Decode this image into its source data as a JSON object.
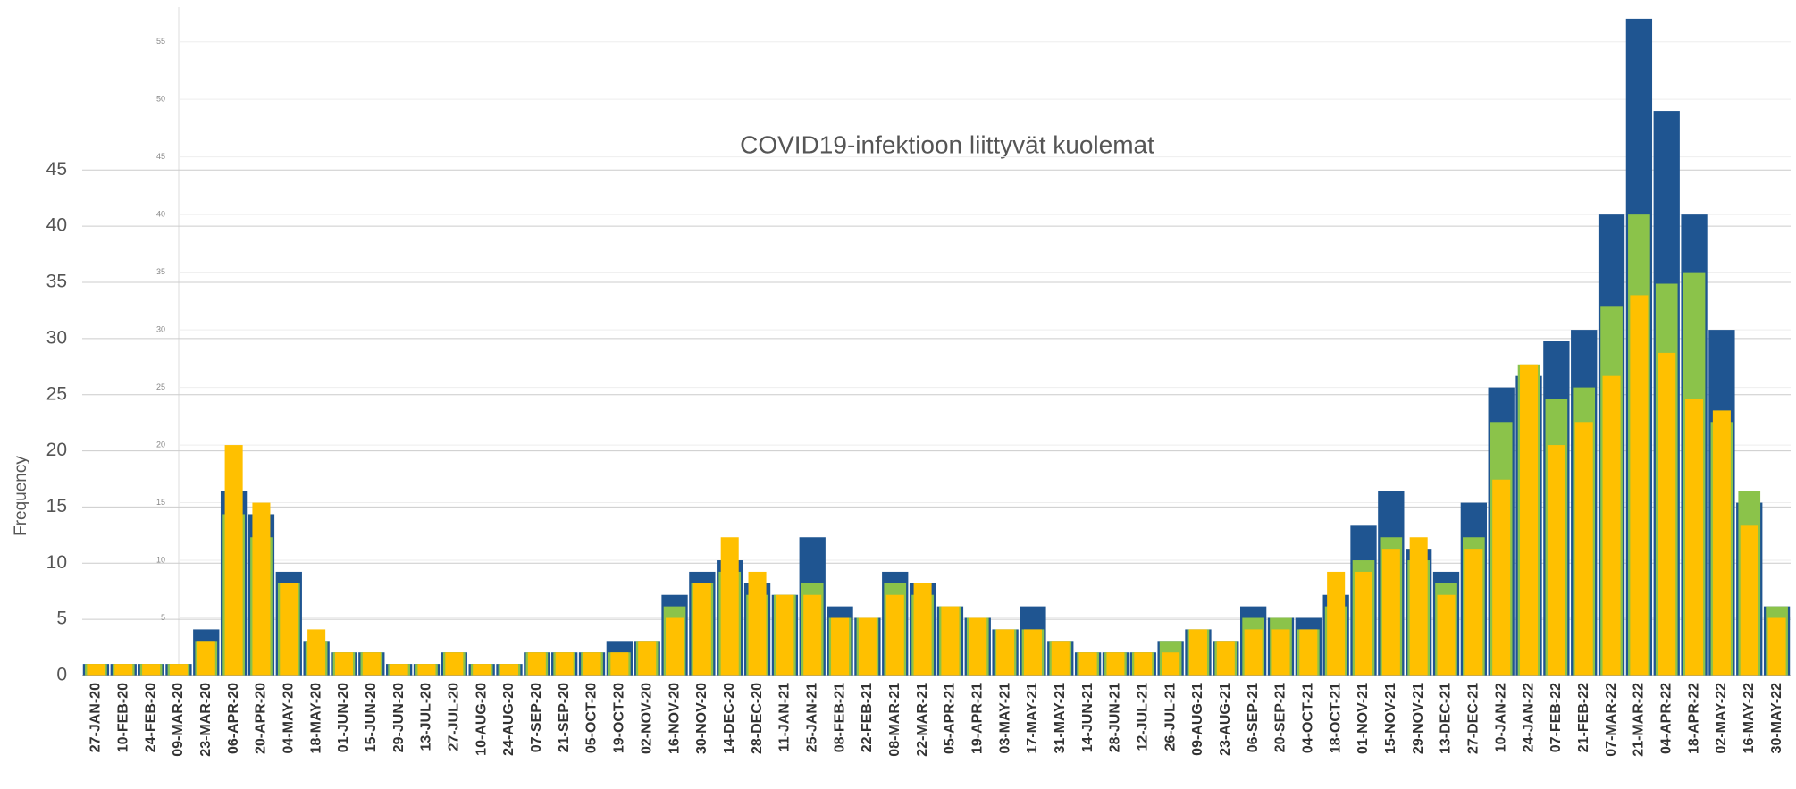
{
  "chart_data": {
    "type": "bar",
    "title": "COVID19-infektioon liittyvät kuolemat",
    "y_label": "Frequency",
    "categories": [
      "27-JAN-20",
      "10-FEB-20",
      "24-FEB-20",
      "09-MAR-20",
      "23-MAR-20",
      "06-APR-20",
      "20-APR-20",
      "04-MAY-20",
      "18-MAY-20",
      "01-JUN-20",
      "15-JUN-20",
      "29-JUN-20",
      "13-JUL-20",
      "27-JUL-20",
      "10-AUG-20",
      "24-AUG-20",
      "07-SEP-20",
      "21-SEP-20",
      "05-OCT-20",
      "19-OCT-20",
      "02-NOV-20",
      "16-NOV-20",
      "30-NOV-20",
      "14-DEC-20",
      "28-DEC-20",
      "11-JAN-21",
      "25-JAN-21",
      "08-FEB-21",
      "22-FEB-21",
      "08-MAR-21",
      "22-MAR-21",
      "05-APR-21",
      "19-APR-21",
      "03-MAY-21",
      "17-MAY-21",
      "31-MAY-21",
      "14-JUN-21",
      "28-JUN-21",
      "12-JUL-21",
      "26-JUL-21",
      "09-AUG-21",
      "23-AUG-21",
      "06-SEP-21",
      "20-SEP-21",
      "04-OCT-21",
      "18-OCT-21",
      "01-NOV-21",
      "15-NOV-21",
      "29-NOV-21",
      "13-DEC-21",
      "27-DEC-21",
      "10-JAN-22",
      "24-JAN-22",
      "07-FEB-22",
      "21-FEB-22",
      "07-MAR-22",
      "21-MAR-22",
      "04-APR-22",
      "18-APR-22",
      "02-MAY-22",
      "16-MAY-22",
      "30-MAY-22"
    ],
    "series": [
      {
        "color": "#1f5591",
        "values": [
          1,
          1,
          1,
          1,
          4,
          16,
          14,
          9,
          3,
          2,
          2,
          1,
          1,
          2,
          1,
          1,
          2,
          2,
          2,
          3,
          3,
          7,
          9,
          10,
          8,
          7,
          12,
          6,
          5,
          9,
          8,
          6,
          5,
          4,
          6,
          3,
          2,
          2,
          2,
          3,
          4,
          3,
          6,
          5,
          5,
          7,
          13,
          16,
          11,
          9,
          15,
          25,
          26,
          29,
          30,
          40,
          57,
          49,
          40,
          30,
          15,
          6
        ]
      },
      {
        "color": "#8bc34a",
        "values": [
          1,
          1,
          1,
          1,
          3,
          14,
          12,
          8,
          3,
          2,
          2,
          1,
          1,
          2,
          1,
          1,
          2,
          2,
          2,
          2,
          3,
          6,
          8,
          9,
          7,
          7,
          8,
          5,
          5,
          8,
          7,
          6,
          5,
          4,
          4,
          3,
          2,
          2,
          2,
          3,
          4,
          3,
          5,
          5,
          4,
          6,
          10,
          12,
          10,
          8,
          12,
          22,
          27,
          24,
          25,
          32,
          40,
          34,
          35,
          22,
          16,
          6
        ]
      },
      {
        "color": "#ffc000",
        "values": [
          1,
          1,
          1,
          1,
          3,
          20,
          15,
          8,
          4,
          2,
          2,
          1,
          1,
          2,
          1,
          1,
          2,
          2,
          2,
          2,
          3,
          5,
          8,
          12,
          9,
          7,
          7,
          5,
          5,
          7,
          8,
          6,
          5,
          4,
          4,
          3,
          2,
          2,
          2,
          2,
          4,
          3,
          4,
          4,
          4,
          9,
          9,
          11,
          12,
          7,
          11,
          17,
          27,
          20,
          22,
          26,
          33,
          28,
          24,
          23,
          13,
          5
        ]
      }
    ],
    "ylim": [
      0,
      58
    ],
    "yticks": [
      5,
      10,
      15,
      20,
      25,
      30,
      35,
      40,
      45,
      50,
      55
    ],
    "y2lim": [
      0,
      59.5
    ],
    "y2ticks": [
      0,
      5,
      10,
      15,
      20,
      25,
      30,
      35,
      40,
      45
    ],
    "grid": true
  }
}
